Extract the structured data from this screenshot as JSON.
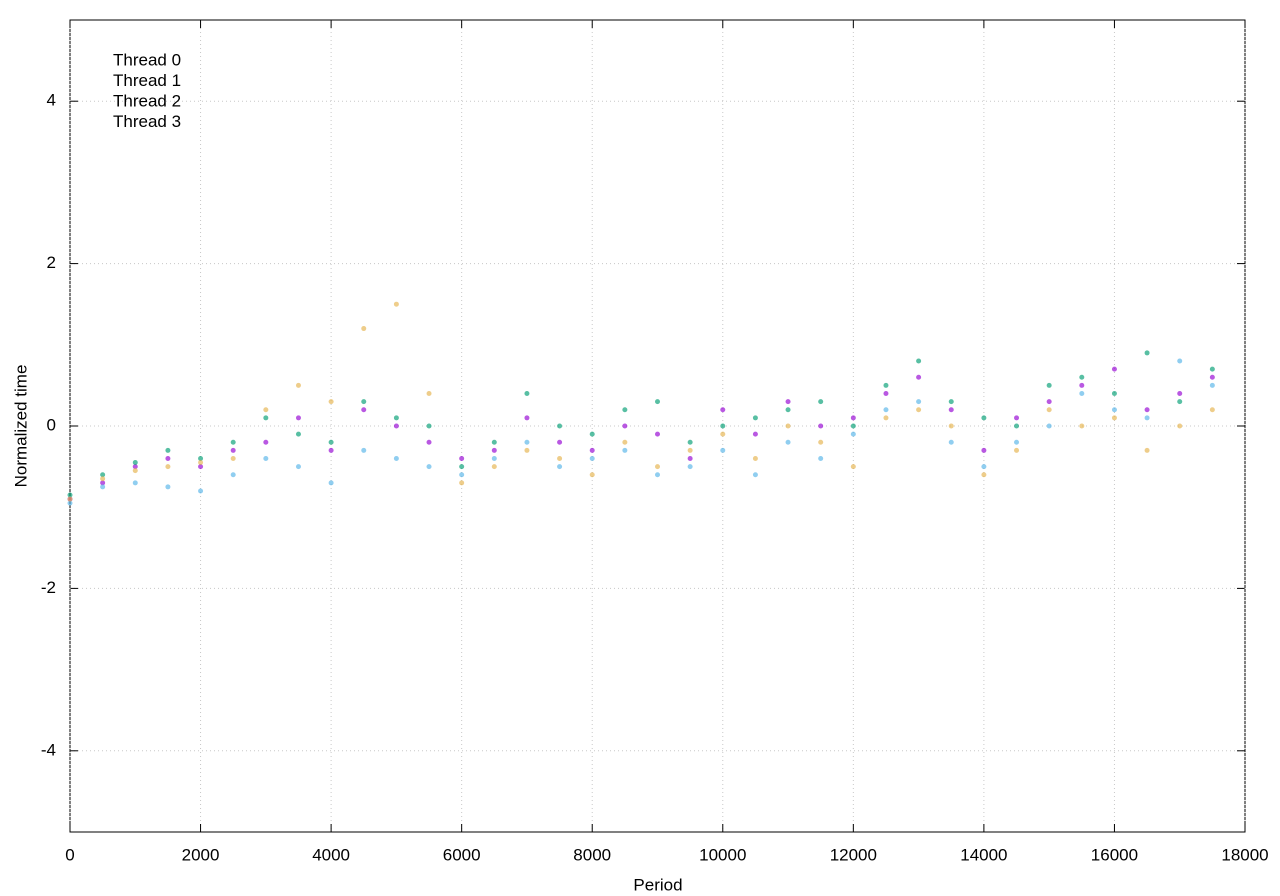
{
  "chart_data": {
    "type": "scatter",
    "x_label": "Period",
    "y_label": "Normalized time",
    "xlim": [
      0,
      18000
    ],
    "ylim": [
      -5,
      5
    ],
    "xticks": [
      0,
      2000,
      4000,
      6000,
      8000,
      10000,
      12000,
      14000,
      16000,
      18000
    ],
    "yticks": [
      -4,
      -2,
      0,
      2,
      4
    ],
    "grid": true,
    "legend": "top-left",
    "x": [
      0,
      500,
      1000,
      1500,
      2000,
      2500,
      3000,
      3500,
      4000,
      4500,
      5000,
      5500,
      6000,
      6500,
      7000,
      7500,
      8000,
      8500,
      9000,
      9500,
      10000,
      10500,
      11000,
      11500,
      12000,
      12500,
      13000,
      13500,
      14000,
      14500,
      15000,
      15500,
      16000,
      16500,
      17000,
      17500
    ],
    "series": [
      {
        "name": "Thread 0",
        "color": "#9400d3",
        "values": [
          -0.9,
          -0.7,
          -0.5,
          -0.4,
          -0.5,
          -0.3,
          -0.2,
          0.1,
          -0.3,
          0.2,
          0.0,
          -0.2,
          -0.4,
          -0.3,
          0.1,
          -0.2,
          -0.3,
          0.0,
          -0.1,
          -0.4,
          0.2,
          -0.1,
          0.3,
          0.0,
          0.1,
          0.4,
          0.6,
          0.2,
          -0.3,
          0.1,
          0.3,
          0.5,
          0.7,
          0.2,
          0.4,
          0.6
        ]
      },
      {
        "name": "Thread 1",
        "color": "#009e73",
        "values": [
          -0.85,
          -0.6,
          -0.45,
          -0.3,
          -0.4,
          -0.2,
          0.1,
          -0.1,
          -0.2,
          0.3,
          0.1,
          0.0,
          -0.5,
          -0.2,
          0.4,
          0.0,
          -0.1,
          0.2,
          0.3,
          -0.2,
          0.0,
          0.1,
          0.2,
          0.3,
          0.0,
          0.5,
          0.8,
          0.3,
          0.1,
          0.0,
          0.5,
          0.6,
          0.4,
          0.9,
          0.3,
          0.7
        ]
      },
      {
        "name": "Thread 2",
        "color": "#56b4e9",
        "values": [
          -0.95,
          -0.75,
          -0.7,
          -0.75,
          -0.8,
          -0.6,
          -0.4,
          -0.5,
          -0.7,
          -0.3,
          -0.4,
          -0.5,
          -0.6,
          -0.4,
          -0.2,
          -0.5,
          -0.4,
          -0.3,
          -0.6,
          -0.5,
          -0.3,
          -0.6,
          -0.2,
          -0.4,
          -0.1,
          0.2,
          0.3,
          -0.2,
          -0.5,
          -0.2,
          0.0,
          0.4,
          0.2,
          0.1,
          0.8,
          0.5
        ]
      },
      {
        "name": "Thread 3",
        "color": "#e6b34d",
        "values": [
          -0.9,
          -0.65,
          -0.55,
          -0.5,
          -0.45,
          -0.4,
          0.2,
          0.5,
          0.3,
          1.2,
          1.5,
          0.4,
          -0.7,
          -0.5,
          -0.3,
          -0.4,
          -0.6,
          -0.2,
          -0.5,
          -0.3,
          -0.1,
          -0.4,
          0.0,
          -0.2,
          -0.5,
          0.1,
          0.2,
          0.0,
          -0.6,
          -0.3,
          0.2,
          0.0,
          0.1,
          -0.3,
          0.0,
          0.2
        ]
      }
    ]
  }
}
